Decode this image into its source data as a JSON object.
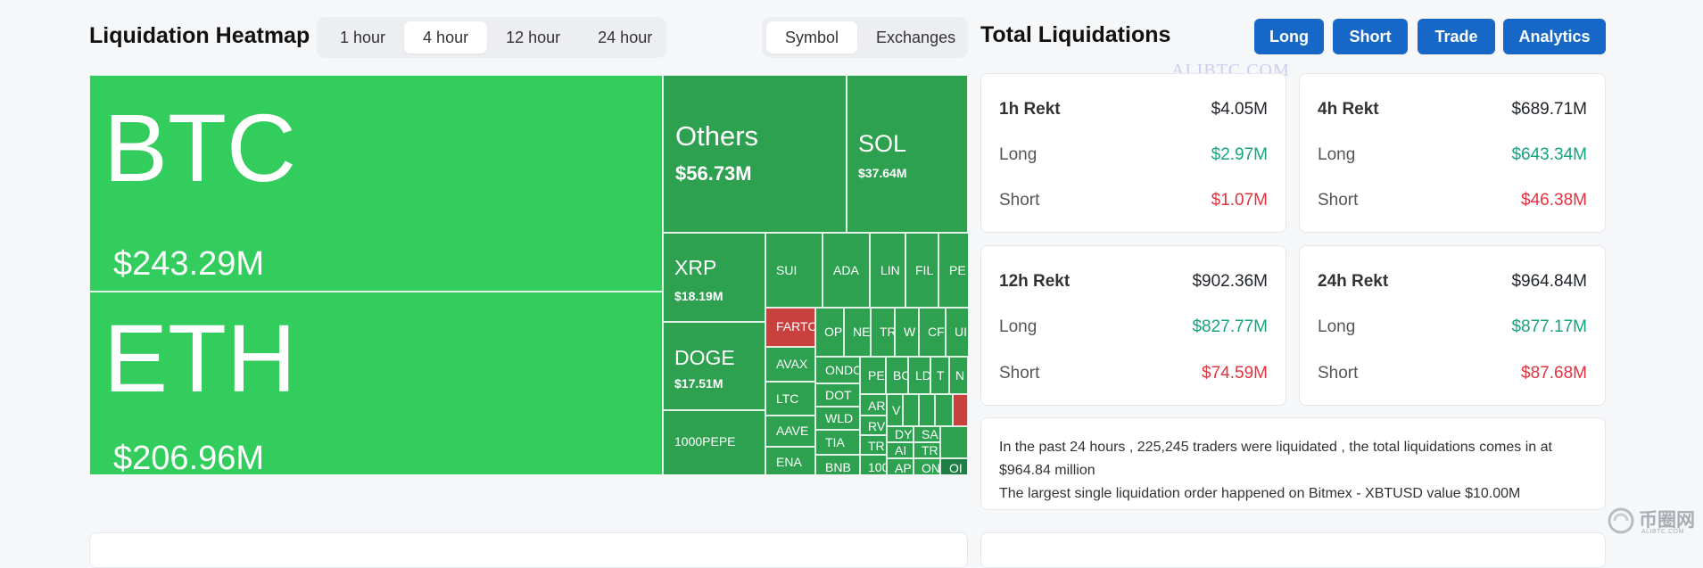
{
  "heatmap": {
    "title": "Liquidation Heatmap",
    "timeframes": [
      "1 hour",
      "4 hour",
      "12 hour",
      "24 hour"
    ],
    "active_timeframe": "4 hour",
    "groupings": [
      "Symbol",
      "Exchanges"
    ],
    "active_grouping": "Symbol",
    "tiles": {
      "btc": {
        "symbol": "BTC",
        "value": "$243.29M"
      },
      "eth": {
        "symbol": "ETH",
        "value": "$206.96M"
      },
      "others": {
        "symbol": "Others",
        "value": "$56.73M"
      },
      "sol": {
        "symbol": "SOL",
        "value": "$37.64M"
      },
      "xrp": {
        "symbol": "XRP",
        "value": "$18.19M"
      },
      "doge": {
        "symbol": "DOGE",
        "value": "$17.51M"
      },
      "pepe": {
        "symbol": "1000PEPE"
      },
      "sui": {
        "symbol": "SUI"
      },
      "ada": {
        "symbol": "ADA"
      },
      "link": {
        "symbol": "LIN"
      },
      "fil": {
        "symbol": "FIL"
      },
      "pen": {
        "symbol": "PE"
      },
      "fartcoin": {
        "symbol": "FARTC"
      },
      "avax": {
        "symbol": "AVAX"
      },
      "ltc": {
        "symbol": "LTC"
      },
      "aave": {
        "symbol": "AAVE"
      },
      "ena": {
        "symbol": "ENA"
      },
      "ondo": {
        "symbol": "ONDO"
      },
      "dot": {
        "symbol": "DOT"
      },
      "wld": {
        "symbol": "WLD"
      },
      "tia": {
        "symbol": "TIA"
      },
      "bnb": {
        "symbol": "BNB"
      },
      "op": {
        "symbol": "OP"
      },
      "ne": {
        "symbol": "NE"
      },
      "tr1": {
        "symbol": "TR"
      },
      "w": {
        "symbol": "W"
      },
      "cr": {
        "symbol": "CF"
      },
      "ui": {
        "symbol": "UI"
      },
      "pe2": {
        "symbol": "PE"
      },
      "bo": {
        "symbol": "BO"
      },
      "ld": {
        "symbol": "LD"
      },
      "t": {
        "symbol": "T"
      },
      "ar": {
        "symbol": "AR"
      },
      "rv": {
        "symbol": "RV"
      },
      "tr2": {
        "symbol": "TR"
      },
      "s100": {
        "symbol": "100"
      },
      "dy": {
        "symbol": "DY"
      },
      "ai": {
        "symbol": "AI"
      },
      "ap": {
        "symbol": "AP"
      },
      "sa": {
        "symbol": "SA"
      },
      "tr3": {
        "symbol": "TR"
      },
      "on": {
        "symbol": "ON"
      },
      "o2": {
        "symbol": "OI"
      },
      "n": {
        "symbol": "N"
      },
      "v": {
        "symbol": "V"
      }
    }
  },
  "totals": {
    "title": "Total Liquidations",
    "buttons": [
      "Long",
      "Short",
      "Trade",
      "Analytics"
    ],
    "watermark": "ALIBTC.COM",
    "cards": [
      {
        "label": "1h Rekt",
        "total": "$4.05M",
        "long_label": "Long",
        "long": "$2.97M",
        "short_label": "Short",
        "short": "$1.07M"
      },
      {
        "label": "4h Rekt",
        "total": "$689.71M",
        "long_label": "Long",
        "long": "$643.34M",
        "short_label": "Short",
        "short": "$46.38M"
      },
      {
        "label": "12h Rekt",
        "total": "$902.36M",
        "long_label": "Long",
        "long": "$827.77M",
        "short_label": "Short",
        "short": "$74.59M"
      },
      {
        "label": "24h Rekt",
        "total": "$964.84M",
        "long_label": "Long",
        "long": "$877.17M",
        "short_label": "Short",
        "short": "$87.68M"
      }
    ],
    "summary_line1": "In the past 24 hours , 225,245 traders were liquidated , the total liquidations comes in at $964.84 million",
    "summary_line2": "The largest single liquidation order happened on Bitmex - XBTUSD value $10.00M"
  },
  "brand": {
    "logo_text": "币圈网",
    "logo_sub": "ALIBTC.COM"
  },
  "colors": {
    "accent": "#1768c6",
    "positive": "#16a37f",
    "negative": "#e0333f",
    "tile_green": "#32cd5d",
    "tile_dark": "#2ea150",
    "tile_red": "#c8413f"
  }
}
